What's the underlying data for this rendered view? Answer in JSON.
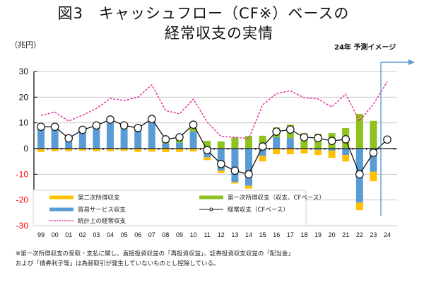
{
  "header": {
    "title_line1": "図3　キャッシュフロー（CF※）ベースの",
    "title_line2": "経常収支の実情",
    "unit": "（兆円）",
    "forecast_label": "24年 予測イメージ"
  },
  "footnote": {
    "line1": "※第一次所得収支の受取・支払に関し、直接投資収益の「再投資収益」、証券投資収支収益の「配当金」",
    "line2": "および「債券利子等」は為替取引が発生していないものとし控除している。"
  },
  "colors": {
    "secondary_income": "#FFC000",
    "primary_income": "#8DC21F",
    "trade_services": "#5B9BD5",
    "current_account": "#000000",
    "statistical_ca": "#E8269A",
    "negative_tick": "#FF0000",
    "forecast_marker": "#5B9BD5"
  },
  "chart_data": {
    "type": "bar",
    "stacked": true,
    "title": "図3　キャッシュフロー（CF※）ベースの経常収支の実情",
    "xlabel": "",
    "ylabel": "（兆円）",
    "ylim": [
      -30,
      30
    ],
    "yticks": [
      30,
      20,
      10,
      0,
      -10,
      -20,
      -30
    ],
    "grid": true,
    "legend_position": "bottom-left",
    "categories": [
      "99",
      "00",
      "01",
      "02",
      "03",
      "04",
      "05",
      "06",
      "07",
      "08",
      "09",
      "10",
      "11",
      "12",
      "13",
      "14",
      "15",
      "16",
      "17",
      "18",
      "19",
      "20",
      "21",
      "22",
      "23",
      "24"
    ],
    "series": [
      {
        "name": "第二次所得収支",
        "type": "bar",
        "values": [
          -1.3,
          -1.0,
          -1.0,
          -0.8,
          -1.0,
          -1.0,
          -0.9,
          -1.3,
          -1.2,
          -1.4,
          -1.3,
          -1.1,
          -1.1,
          -1.0,
          -0.6,
          -1.1,
          -2.2,
          -2.2,
          -2.2,
          -1.9,
          -2.0,
          -2.8,
          -2.5,
          -3.0,
          -3.7,
          null
        ]
      },
      {
        "name": "貿易サービス収支",
        "type": "bar",
        "values": [
          8.0,
          7.6,
          3.2,
          6.5,
          8.3,
          10.1,
          7.6,
          7.3,
          10.5,
          2.0,
          2.3,
          6.7,
          -3.4,
          -8.5,
          -13.0,
          -14.5,
          -2.8,
          4.4,
          4.1,
          0.0,
          -0.5,
          -0.8,
          -2.5,
          -21.0,
          -9.0,
          null
        ]
      },
      {
        "name": "第一次所得収支（収支、CFベース）",
        "type": "bar",
        "values": [
          0.5,
          0.9,
          0.6,
          0.6,
          0.4,
          0.8,
          0.6,
          0.3,
          0.9,
          1.4,
          2.1,
          2.2,
          3.0,
          2.8,
          4.3,
          4.9,
          5.0,
          3.8,
          5.2,
          6.0,
          5.8,
          6.0,
          8.0,
          13.5,
          10.8,
          null
        ]
      },
      {
        "name": "経常収支（CFベース）",
        "type": "line",
        "marker": "circle",
        "values": [
          8.5,
          8.5,
          4.0,
          7.3,
          9.0,
          11.3,
          9.0,
          8.0,
          11.5,
          3.6,
          4.4,
          9.3,
          -0.6,
          -6.0,
          -8.6,
          -10.0,
          0.8,
          6.6,
          7.4,
          4.4,
          4.1,
          3.0,
          3.6,
          -10.0,
          -1.6,
          3.5
        ]
      },
      {
        "name": "統計上の経常収支",
        "type": "line",
        "style": "dashed",
        "values": [
          12.9,
          14.2,
          10.7,
          13.0,
          15.6,
          19.5,
          18.7,
          20.0,
          24.8,
          14.8,
          13.5,
          19.3,
          10.3,
          4.7,
          4.4,
          3.9,
          17.0,
          21.4,
          22.5,
          19.8,
          19.3,
          16.2,
          21.2,
          10.7,
          17.3,
          26.0
        ]
      }
    ],
    "annotations": [
      {
        "text": "24年 予測イメージ",
        "target_category": "24",
        "marker": "vertical line with right arrow"
      }
    ]
  }
}
